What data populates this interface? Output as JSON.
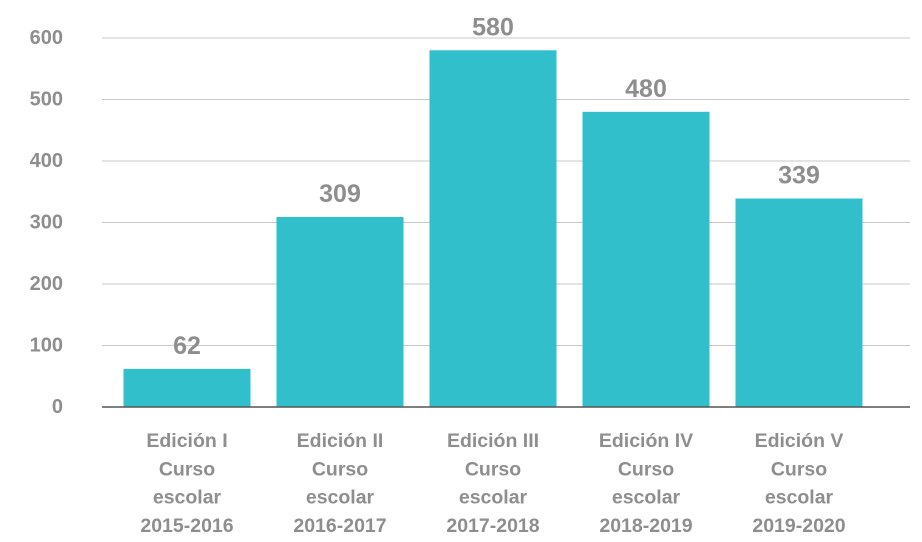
{
  "chart_data": {
    "type": "bar",
    "categories": [
      [
        "Edición I",
        "Curso",
        "escolar",
        "2015-2016"
      ],
      [
        "Edición II",
        "Curso",
        "escolar",
        "2016-2017"
      ],
      [
        "Edición III",
        "Curso",
        "escolar",
        "2017-2018"
      ],
      [
        "Edición IV",
        "Curso",
        "escolar",
        "2018-2019"
      ],
      [
        "Edición V",
        "Curso",
        "escolar",
        "2019-2020"
      ]
    ],
    "values": [
      62,
      309,
      580,
      480,
      339
    ],
    "data_labels": [
      "62",
      "309",
      "580",
      "480",
      "339"
    ],
    "yticks": [
      "0",
      "100",
      "200",
      "300",
      "400",
      "500",
      "600"
    ],
    "ylim": [
      0,
      600
    ],
    "grid": true,
    "legend": "none",
    "colors": {
      "bar": "#31BFCB",
      "text": "#8E8E8E",
      "grid": "#C8C8C8",
      "axis": "#555555"
    }
  }
}
